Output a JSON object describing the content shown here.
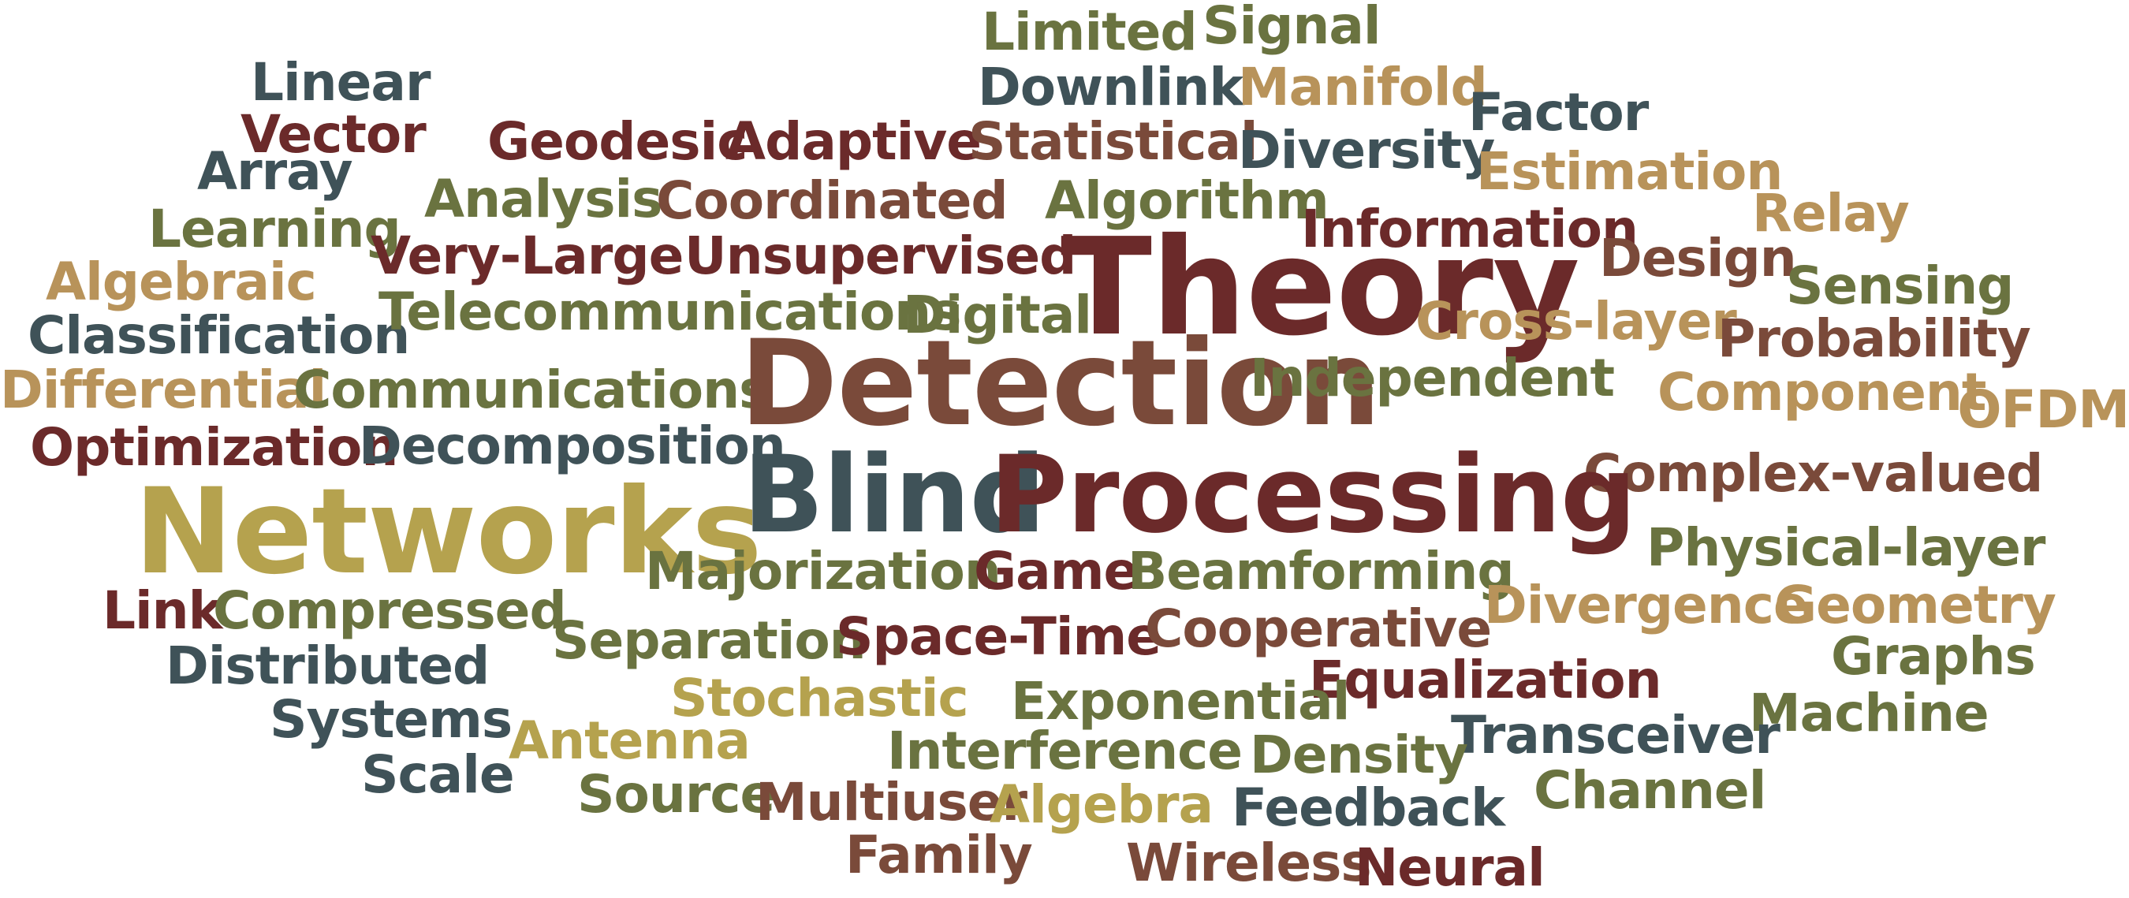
{
  "palette": {
    "dark_red": "#6b2a2a",
    "brown": "#7a4a3a",
    "olive": "#6a7340",
    "slate": "#3f5258",
    "gold": "#b5a24e",
    "tan": "#b8935a"
  },
  "words": [
    {
      "text": "Limited",
      "color": "#6a7340"
    },
    {
      "text": "Signal",
      "color": "#6a7340"
    },
    {
      "text": "Linear",
      "color": "#3f5258"
    },
    {
      "text": "Downlink",
      "color": "#3f5258"
    },
    {
      "text": "Manifold",
      "color": "#b8935a"
    },
    {
      "text": "Factor",
      "color": "#3f5258"
    },
    {
      "text": "Vector",
      "color": "#6b2a2a"
    },
    {
      "text": "Geodesic",
      "color": "#6b2a2a"
    },
    {
      "text": "Adaptive",
      "color": "#6b2a2a"
    },
    {
      "text": "Statistical",
      "color": "#7a4a3a"
    },
    {
      "text": "Diversity",
      "color": "#3f5258"
    },
    {
      "text": "Array",
      "color": "#3f5258"
    },
    {
      "text": "Estimation",
      "color": "#b8935a"
    },
    {
      "text": "Analysis",
      "color": "#6a7340"
    },
    {
      "text": "Coordinated",
      "color": "#7a4a3a"
    },
    {
      "text": "Algorithm",
      "color": "#6a7340"
    },
    {
      "text": "Relay",
      "color": "#b8935a"
    },
    {
      "text": "Learning",
      "color": "#6a7340"
    },
    {
      "text": "Information",
      "color": "#6b2a2a"
    },
    {
      "text": "Very-Large",
      "color": "#6b2a2a"
    },
    {
      "text": "Unsupervised",
      "color": "#6b2a2a"
    },
    {
      "text": "Theory",
      "color": "#6b2a2a"
    },
    {
      "text": "Design",
      "color": "#7a4a3a"
    },
    {
      "text": "Algebraic",
      "color": "#b8935a"
    },
    {
      "text": "Sensing",
      "color": "#6a7340"
    },
    {
      "text": "Classification",
      "color": "#3f5258"
    },
    {
      "text": "Telecommunications",
      "color": "#6a7340"
    },
    {
      "text": "Digital",
      "color": "#6a7340"
    },
    {
      "text": "Cross-layer",
      "color": "#b8935a"
    },
    {
      "text": "Probability",
      "color": "#7a4a3a"
    },
    {
      "text": "Differential",
      "color": "#b8935a"
    },
    {
      "text": "Communications",
      "color": "#6a7340"
    },
    {
      "text": "Detection",
      "color": "#7a4a3a"
    },
    {
      "text": "Independent",
      "color": "#6a7340"
    },
    {
      "text": "Component",
      "color": "#b8935a"
    },
    {
      "text": "OFDM",
      "color": "#b8935a"
    },
    {
      "text": "Optimization",
      "color": "#6b2a2a"
    },
    {
      "text": "Decomposition",
      "color": "#3f5258"
    },
    {
      "text": "Complex-valued",
      "color": "#7a4a3a"
    },
    {
      "text": "Blind",
      "color": "#3f5258"
    },
    {
      "text": "Processing",
      "color": "#6b2a2a"
    },
    {
      "text": "Networks",
      "color": "#b5a24e"
    },
    {
      "text": "Physical-layer",
      "color": "#6a7340"
    },
    {
      "text": "Majorization",
      "color": "#6a7340"
    },
    {
      "text": "Game",
      "color": "#6b2a2a"
    },
    {
      "text": "Beamforming",
      "color": "#6a7340"
    },
    {
      "text": "Link",
      "color": "#6b2a2a"
    },
    {
      "text": "Compressed",
      "color": "#6a7340"
    },
    {
      "text": "Divergence",
      "color": "#b8935a"
    },
    {
      "text": "Geometry",
      "color": "#b8935a"
    },
    {
      "text": "Separation",
      "color": "#6a7340"
    },
    {
      "text": "Space-Time",
      "color": "#6b2a2a"
    },
    {
      "text": "Cooperative",
      "color": "#7a4a3a"
    },
    {
      "text": "Distributed",
      "color": "#3f5258"
    },
    {
      "text": "Graphs",
      "color": "#6a7340"
    },
    {
      "text": "Equalization",
      "color": "#6b2a2a"
    },
    {
      "text": "Stochastic",
      "color": "#b5a24e"
    },
    {
      "text": "Exponential",
      "color": "#6a7340"
    },
    {
      "text": "Systems",
      "color": "#3f5258"
    },
    {
      "text": "Machine",
      "color": "#6a7340"
    },
    {
      "text": "Transceiver",
      "color": "#3f5258"
    },
    {
      "text": "Antenna",
      "color": "#b5a24e"
    },
    {
      "text": "Interference",
      "color": "#6a7340"
    },
    {
      "text": "Density",
      "color": "#6a7340"
    },
    {
      "text": "Scale",
      "color": "#3f5258"
    },
    {
      "text": "Channel",
      "color": "#6a7340"
    },
    {
      "text": "Source",
      "color": "#6a7340"
    },
    {
      "text": "Multiuser",
      "color": "#7a4a3a"
    },
    {
      "text": "Algebra",
      "color": "#b5a24e"
    },
    {
      "text": "Feedback",
      "color": "#3f5258"
    },
    {
      "text": "Family",
      "color": "#7a4a3a"
    },
    {
      "text": "Wireless",
      "color": "#7a4a3a"
    },
    {
      "text": "Neural",
      "color": "#6b2a2a"
    }
  ]
}
